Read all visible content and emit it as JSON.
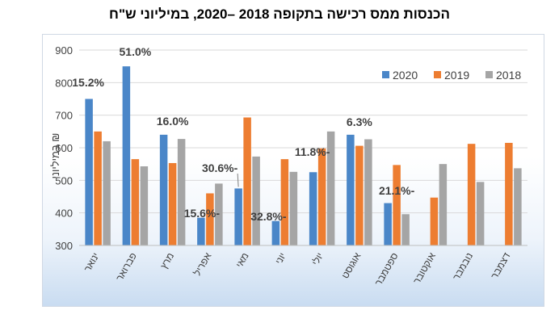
{
  "chart_data": {
    "type": "bar",
    "title": "הכנסות ממס רכישה בתקופה 2018 –2020, במיליוני ש\"ח",
    "ylabel": "במיליוני ₪",
    "xlabel": "",
    "ylim": [
      300,
      900
    ],
    "yticks": [
      300,
      400,
      500,
      600,
      700,
      800,
      900
    ],
    "grid": true,
    "legend_position": "top-right",
    "categories": [
      "ינואר",
      "פברואר",
      "מרץ",
      "אפריל",
      "מאי",
      "יוני",
      "יולי",
      "אוגוסט",
      "ספטמבר",
      "אוקטובר",
      "נובמבר",
      "דצמבר"
    ],
    "series": [
      {
        "name": "2020",
        "color": "#4a86c8",
        "values": [
          750,
          850,
          640,
          385,
          475,
          375,
          525,
          640,
          430,
          null,
          null,
          null
        ]
      },
      {
        "name": "2019",
        "color": "#ed7d31",
        "values": [
          650,
          565,
          553,
          460,
          693,
          565,
          598,
          606,
          547,
          447,
          612,
          615
        ]
      },
      {
        "name": "2018",
        "color": "#a5a5a5",
        "values": [
          620,
          543,
          627,
          490,
          573,
          526,
          650,
          626,
          396,
          550,
          495,
          537
        ]
      }
    ],
    "annotations": [
      {
        "category": "ינואר",
        "text": "15.2%"
      },
      {
        "category": "פברואר",
        "text": "51.0%"
      },
      {
        "category": "מרץ",
        "text": "16.0%"
      },
      {
        "category": "אפריל",
        "text": "15.6%-"
      },
      {
        "category": "מאי",
        "text": "30.6%-"
      },
      {
        "category": "יוני",
        "text": "32.8%-"
      },
      {
        "category": "יולי",
        "text": "11.8%-"
      },
      {
        "category": "אוגוסט",
        "text": "6.3%"
      },
      {
        "category": "ספטמבר",
        "text": "21.1%-"
      }
    ]
  }
}
